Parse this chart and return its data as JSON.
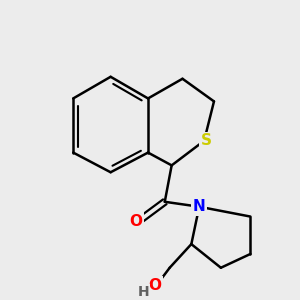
{
  "bg_color": "#ececec",
  "bond_color": "#000000",
  "bond_width": 1.8,
  "S_color": "#cccc00",
  "N_color": "#0000ff",
  "O_color": "#ff0000",
  "H_color": "#606060",
  "font_size": 11,
  "atoms": {
    "S": {
      "label": "S",
      "color": "#cccc00"
    },
    "N": {
      "label": "N",
      "color": "#0000ff"
    },
    "O": {
      "label": "O",
      "color": "#ff0000"
    },
    "H": {
      "label": "H",
      "color": "#606060"
    }
  }
}
